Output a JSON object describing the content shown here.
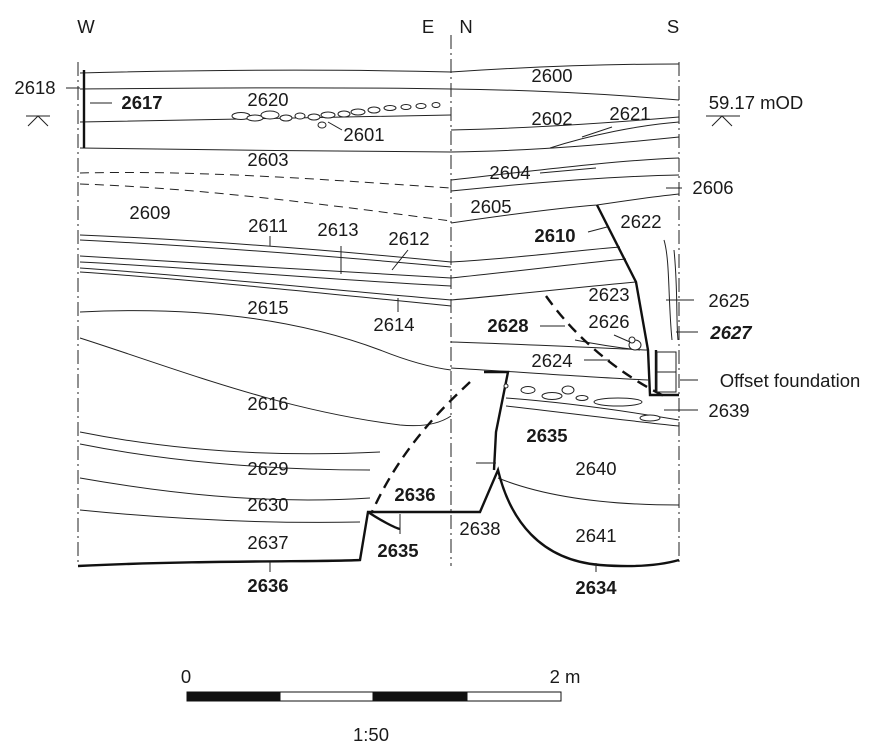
{
  "orientation": {
    "west": "W",
    "east": "E",
    "north": "N",
    "south": "S"
  },
  "datum": {
    "left_label": "2618",
    "right_label": "59.17 mOD"
  },
  "contexts": {
    "c2600": "2600",
    "c2601": "2601",
    "c2602": "2602",
    "c2603": "2603",
    "c2604": "2604",
    "c2605": "2605",
    "c2606": "2606",
    "c2609": "2609",
    "c2610": "2610",
    "c2611": "2611",
    "c2612": "2612",
    "c2613": "2613",
    "c2614": "2614",
    "c2615": "2615",
    "c2616": "2616",
    "c2617": "2617",
    "c2620": "2620",
    "c2621": "2621",
    "c2622": "2622",
    "c2623": "2623",
    "c2624": "2624",
    "c2625": "2625",
    "c2626": "2626",
    "c2627": "2627",
    "c2628": "2628",
    "c2629": "2629",
    "c2630": "2630",
    "c2634": "2634",
    "c2635_upper": "2635",
    "c2635_lower": "2635",
    "c2636_upper": "2636",
    "c2636_lower": "2636",
    "c2637": "2637",
    "c2638": "2638",
    "c2639": "2639",
    "c2640": "2640",
    "c2641": "2641",
    "offset_foundation": "Offset foundation"
  },
  "scale": {
    "start_label": "0",
    "end_label": "2 m",
    "ratio_label": "1:50"
  }
}
